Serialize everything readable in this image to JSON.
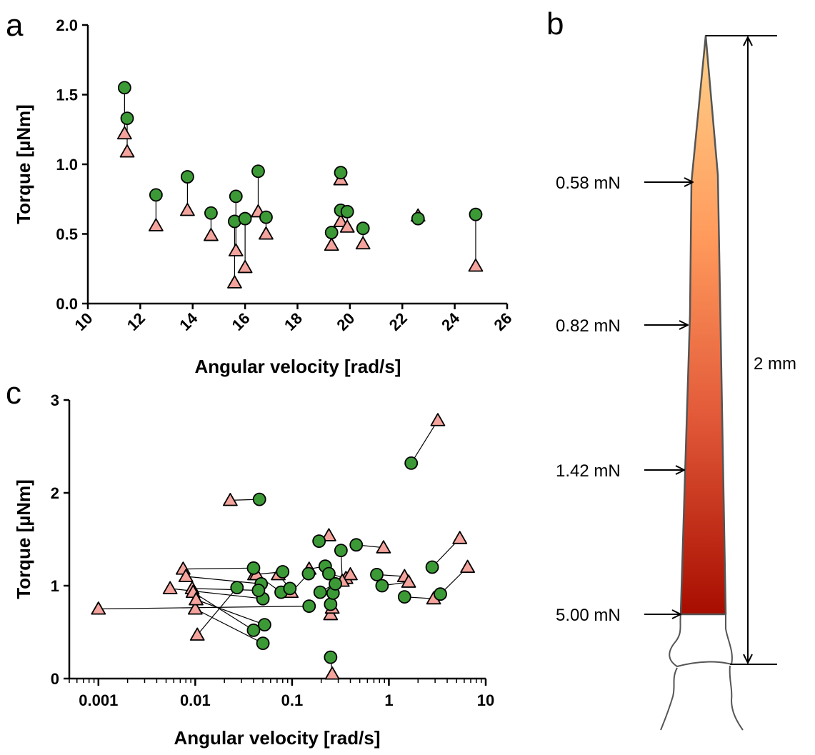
{
  "chart_data": [
    {
      "panel": "a",
      "type": "scatter",
      "xlabel": "Angular velocity [rad/s]",
      "ylabel": "Torque [µNm]",
      "xlim": [
        10,
        26
      ],
      "ylim": [
        0,
        2
      ],
      "xticks": [
        "10",
        "12",
        "14",
        "16",
        "18",
        "20",
        "22",
        "24",
        "26"
      ],
      "yticks": [
        "0.0",
        "0.5",
        "1.0",
        "1.5",
        "2.0"
      ],
      "markers": {
        "circle_color": "#3c9a36",
        "triangle_color": "#f4a39d"
      },
      "pairs": [
        {
          "x": 11.4,
          "circle": 1.55,
          "triangle": 1.22
        },
        {
          "x": 11.5,
          "circle": 1.33,
          "triangle": 1.09
        },
        {
          "x": 12.6,
          "circle": 0.78,
          "triangle": 0.56
        },
        {
          "x": 13.8,
          "circle": 0.91,
          "triangle": 0.67
        },
        {
          "x": 14.7,
          "circle": 0.65,
          "triangle": 0.49
        },
        {
          "x": 15.6,
          "circle": 0.59,
          "triangle": 0.15
        },
        {
          "x": 15.65,
          "circle": 0.77,
          "triangle": 0.38
        },
        {
          "x": 16.0,
          "circle": 0.61,
          "triangle": 0.26
        },
        {
          "x": 16.5,
          "circle": 0.95,
          "triangle": 0.66
        },
        {
          "x": 16.8,
          "circle": 0.62,
          "triangle": 0.5
        },
        {
          "x": 19.3,
          "circle": 0.51,
          "triangle": 0.42
        },
        {
          "x": 19.65,
          "circle": 0.94,
          "triangle": 0.89
        },
        {
          "x": 19.65,
          "circle": 0.67,
          "triangle": 0.59
        },
        {
          "x": 19.9,
          "circle": 0.66,
          "triangle": 0.55
        },
        {
          "x": 20.5,
          "circle": 0.54,
          "triangle": 0.43
        },
        {
          "x": 22.6,
          "circle": 0.61,
          "triangle": 0.63
        },
        {
          "x": 24.8,
          "circle": 0.64,
          "triangle": 0.27
        }
      ]
    },
    {
      "panel": "b",
      "type": "diagram",
      "scale_label": "2 mm",
      "force_labels": [
        "0.58 mN",
        "0.82 mN",
        "1.42 mN",
        "5.00 mN"
      ]
    },
    {
      "panel": "c",
      "type": "scatter",
      "xscale": "log",
      "xlabel": "Angular velocity [rad/s]",
      "ylabel": "Torque [µNm]",
      "xlim": [
        0.0005,
        10
      ],
      "ylim": [
        0,
        3
      ],
      "xticks": [
        "0.001",
        "0.01",
        "0.1",
        "1",
        "10"
      ],
      "yticks": [
        "0",
        "1",
        "2",
        "3"
      ],
      "markers": {
        "circle_color": "#3c9a36",
        "triangle_color": "#f4a39d"
      },
      "pairs": [
        {
          "triangle": [
            0.001,
            0.75
          ],
          "circle": [
            0.15,
            0.78
          ]
        },
        {
          "triangle": [
            0.0055,
            0.97
          ],
          "circle": [
            0.05,
            0.86
          ]
        },
        {
          "triangle": [
            0.0075,
            1.18
          ],
          "circle": [
            0.04,
            1.19
          ]
        },
        {
          "triangle": [
            0.008,
            1.1
          ],
          "circle": [
            0.048,
            1.02
          ]
        },
        {
          "triangle": [
            0.0093,
            0.97
          ],
          "circle": [
            0.045,
            0.95
          ]
        },
        {
          "triangle": [
            0.0095,
            0.93
          ],
          "circle": [
            0.04,
            0.52
          ]
        },
        {
          "triangle": [
            0.01,
            0.75
          ],
          "circle": [
            0.05,
            0.38
          ]
        },
        {
          "triangle": [
            0.0102,
            0.85
          ],
          "circle": [
            0.052,
            0.58
          ]
        },
        {
          "triangle": [
            0.0105,
            0.47
          ],
          "circle": [
            0.027,
            0.98
          ]
        },
        {
          "triangle": [
            0.023,
            1.92
          ],
          "circle": [
            0.046,
            1.93
          ]
        },
        {
          "triangle": [
            0.041,
            1.12
          ],
          "circle": [
            0.08,
            1.15
          ]
        },
        {
          "triangle": [
            0.043,
            1.12
          ],
          "circle": [
            0.077,
            0.93
          ]
        },
        {
          "triangle": [
            0.072,
            1.12
          ],
          "circle": [
            0.095,
            0.97
          ]
        },
        {
          "triangle": [
            0.098,
            0.93
          ],
          "circle": [
            0.148,
            1.13
          ]
        },
        {
          "triangle": [
            0.15,
            1.18
          ],
          "circle": [
            0.22,
            1.21
          ]
        },
        {
          "triangle": [
            0.24,
            1.54
          ],
          "circle": [
            0.19,
            1.48
          ]
        },
        {
          "triangle": [
            0.25,
            0.69
          ],
          "circle": [
            0.25,
            0.8
          ]
        },
        {
          "triangle": [
            0.26,
            0.76
          ],
          "circle": [
            0.265,
            0.92
          ]
        },
        {
          "triangle": [
            0.26,
            0.05
          ],
          "circle": [
            0.25,
            0.23
          ]
        },
        {
          "triangle": [
            0.33,
            1.05
          ],
          "circle": [
            0.28,
            1.02
          ]
        },
        {
          "triangle": [
            0.36,
            1.08
          ],
          "circle": [
            0.24,
            1.13
          ]
        },
        {
          "triangle": [
            0.4,
            1.12
          ],
          "circle": [
            0.195,
            0.93
          ]
        },
        {
          "triangle": [
            0.88,
            1.41
          ],
          "circle": [
            0.46,
            1.44
          ]
        },
        {
          "triangle": [
            1.45,
            1.1
          ],
          "circle": [
            0.75,
            1.12
          ]
        },
        {
          "triangle": [
            1.6,
            1.04
          ],
          "circle": [
            0.85,
            1.0
          ]
        },
        {
          "triangle": [
            2.9,
            0.86
          ],
          "circle": [
            1.45,
            0.88
          ]
        },
        {
          "triangle": [
            3.2,
            2.78
          ],
          "circle": [
            1.7,
            2.32
          ]
        },
        {
          "triangle": [
            5.4,
            1.51
          ],
          "circle": [
            2.8,
            1.2
          ]
        },
        {
          "triangle": [
            6.5,
            1.2
          ],
          "circle": [
            3.4,
            0.91
          ]
        },
        {
          "triangle": [
            0.33,
            1.05
          ],
          "circle": [
            0.32,
            1.38
          ]
        }
      ]
    }
  ]
}
